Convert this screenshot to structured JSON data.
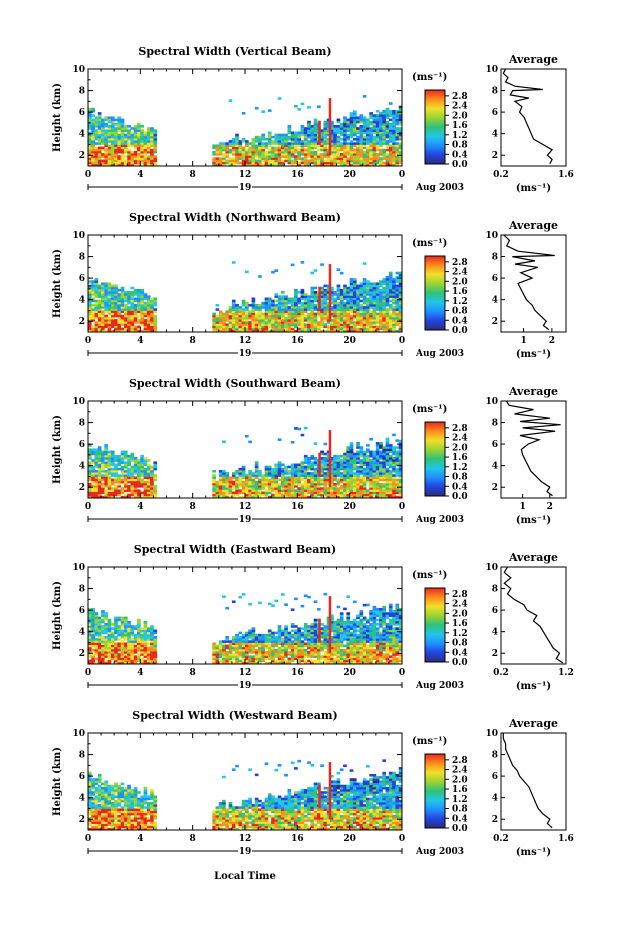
{
  "footer": {
    "xlabel": "Local Time"
  },
  "colorbar": {
    "unit": "(ms⁻¹)",
    "ticks": [
      "0.0",
      "0.4",
      "0.8",
      "1.2",
      "1.6",
      "2.0",
      "2.4",
      "2.8"
    ],
    "stops": [
      "#2c2c7a",
      "#2244dd",
      "#1e90ff",
      "#22c6e8",
      "#2ec27a",
      "#9ad432",
      "#f0e02a",
      "#ff8c1a",
      "#e8281e"
    ]
  },
  "chart_data": [
    {
      "type": "heatmap",
      "title": "Spectral Width (Vertical Beam)",
      "ylabel": "Height (km)",
      "xticks": [
        "0",
        "4",
        "8",
        "12",
        "16",
        "20",
        "0"
      ],
      "date_hour_label": "19",
      "date_label": "Aug 2003",
      "ylim": [
        1,
        10
      ],
      "yticks": [
        "2",
        "4",
        "6",
        "8",
        "10"
      ],
      "avg": {
        "title": "Average",
        "xlabel": "(ms⁻¹)",
        "xticks": [
          "0.2",
          "1.6"
        ],
        "xlim": [
          0.2,
          1.6
        ],
        "ylim": [
          1,
          10
        ],
        "yticks": [
          "2",
          "4",
          "6",
          "8",
          "10"
        ],
        "profile": [
          [
            1.25,
            1.2
          ],
          [
            1.3,
            1.6
          ],
          [
            1.2,
            2.0
          ],
          [
            1.3,
            2.5
          ],
          [
            1.1,
            3.0
          ],
          [
            0.9,
            3.5
          ],
          [
            0.85,
            4.0
          ],
          [
            0.8,
            4.5
          ],
          [
            0.75,
            5.0
          ],
          [
            0.7,
            5.5
          ],
          [
            0.6,
            6.0
          ],
          [
            0.65,
            6.5
          ],
          [
            0.5,
            7.0
          ],
          [
            0.8,
            7.3
          ],
          [
            0.4,
            7.6
          ],
          [
            0.45,
            8.0
          ],
          [
            1.1,
            8.1
          ],
          [
            0.5,
            8.4
          ],
          [
            0.3,
            8.8
          ],
          [
            0.35,
            9.2
          ],
          [
            0.25,
            9.6
          ],
          [
            0.3,
            10.0
          ]
        ]
      }
    },
    {
      "type": "heatmap",
      "title": "Spectral Width (Northward Beam)",
      "ylabel": "Height (km)",
      "xticks": [
        "0",
        "4",
        "8",
        "12",
        "16",
        "20",
        "0"
      ],
      "date_hour_label": "19",
      "date_label": "Aug 2003",
      "ylim": [
        1,
        10
      ],
      "yticks": [
        "2",
        "4",
        "6",
        "8",
        "10"
      ],
      "avg": {
        "title": "Average",
        "xlabel": "(ms⁻¹)",
        "xticks": [
          "1",
          "2"
        ],
        "xlim": [
          0.2,
          2.5
        ],
        "ylim": [
          1,
          10
        ],
        "yticks": [
          "2",
          "4",
          "6",
          "8",
          "10"
        ],
        "profile": [
          [
            1.9,
            1.2
          ],
          [
            1.7,
            1.6
          ],
          [
            1.8,
            2.0
          ],
          [
            1.6,
            2.5
          ],
          [
            1.4,
            3.0
          ],
          [
            1.3,
            3.5
          ],
          [
            1.1,
            4.0
          ],
          [
            1.0,
            4.5
          ],
          [
            0.9,
            5.0
          ],
          [
            0.8,
            5.5
          ],
          [
            1.3,
            6.0
          ],
          [
            0.9,
            6.5
          ],
          [
            1.5,
            7.0
          ],
          [
            0.7,
            7.3
          ],
          [
            1.4,
            7.6
          ],
          [
            0.6,
            8.0
          ],
          [
            2.1,
            8.1
          ],
          [
            0.8,
            8.5
          ],
          [
            0.4,
            9.0
          ],
          [
            0.5,
            9.5
          ],
          [
            0.3,
            10.0
          ]
        ]
      }
    },
    {
      "type": "heatmap",
      "title": "Spectral Width (Southward Beam)",
      "ylabel": "Height (km)",
      "xticks": [
        "0",
        "4",
        "8",
        "12",
        "16",
        "20",
        "0"
      ],
      "date_hour_label": "19",
      "date_label": "Aug 2003",
      "ylim": [
        1,
        10
      ],
      "yticks": [
        "2",
        "4",
        "6",
        "8",
        "10"
      ],
      "avg": {
        "title": "Average",
        "xlabel": "(ms⁻¹)",
        "xticks": [
          "1",
          "2"
        ],
        "xlim": [
          0.2,
          2.6
        ],
        "ylim": [
          1,
          10
        ],
        "yticks": [
          "2",
          "4",
          "6",
          "8",
          "10"
        ],
        "profile": [
          [
            2.1,
            1.2
          ],
          [
            1.9,
            1.6
          ],
          [
            2.0,
            2.0
          ],
          [
            1.7,
            2.5
          ],
          [
            1.5,
            3.0
          ],
          [
            1.3,
            3.5
          ],
          [
            1.2,
            4.0
          ],
          [
            1.1,
            4.5
          ],
          [
            1.0,
            5.0
          ],
          [
            0.95,
            5.5
          ],
          [
            1.2,
            6.0
          ],
          [
            1.6,
            6.4
          ],
          [
            0.9,
            6.8
          ],
          [
            2.2,
            7.2
          ],
          [
            1.0,
            7.5
          ],
          [
            2.4,
            7.8
          ],
          [
            0.9,
            8.1
          ],
          [
            2.0,
            8.4
          ],
          [
            0.7,
            8.8
          ],
          [
            1.4,
            9.2
          ],
          [
            0.5,
            9.6
          ],
          [
            0.4,
            10.0
          ]
        ]
      }
    },
    {
      "type": "heatmap",
      "title": "Spectral Width (Eastward Beam)",
      "ylabel": "Height (km)",
      "xticks": [
        "0",
        "4",
        "8",
        "12",
        "16",
        "20",
        "0"
      ],
      "date_hour_label": "19",
      "date_label": "Aug 2003",
      "ylim": [
        1,
        10
      ],
      "yticks": [
        "2",
        "4",
        "6",
        "8",
        "10"
      ],
      "avg": {
        "title": "Average",
        "xlabel": "(ms⁻¹)",
        "xticks": [
          "0.2",
          "1.2"
        ],
        "xlim": [
          0.2,
          1.2
        ],
        "ylim": [
          1,
          10
        ],
        "yticks": [
          "2",
          "4",
          "6",
          "8",
          "10"
        ],
        "profile": [
          [
            1.15,
            1.1
          ],
          [
            1.05,
            1.5
          ],
          [
            1.1,
            2.0
          ],
          [
            1.0,
            2.5
          ],
          [
            0.95,
            3.0
          ],
          [
            0.9,
            3.5
          ],
          [
            0.85,
            4.0
          ],
          [
            0.8,
            4.5
          ],
          [
            0.7,
            5.0
          ],
          [
            0.75,
            5.5
          ],
          [
            0.6,
            6.0
          ],
          [
            0.55,
            6.5
          ],
          [
            0.4,
            7.0
          ],
          [
            0.3,
            7.5
          ],
          [
            0.35,
            8.0
          ],
          [
            0.25,
            8.5
          ],
          [
            0.35,
            9.0
          ],
          [
            0.25,
            9.5
          ],
          [
            0.3,
            10.0
          ]
        ]
      }
    },
    {
      "type": "heatmap",
      "title": "Spectral Width (Westward Beam)",
      "ylabel": "Height (km)",
      "xticks": [
        "0",
        "4",
        "8",
        "12",
        "16",
        "20",
        "0"
      ],
      "date_hour_label": "19",
      "date_label": "Aug 2003",
      "ylim": [
        1,
        10
      ],
      "yticks": [
        "2",
        "4",
        "6",
        "8",
        "10"
      ],
      "avg": {
        "title": "Average",
        "xlabel": "(ms⁻¹)",
        "xticks": [
          "0.2",
          "1.6"
        ],
        "xlim": [
          0.2,
          1.6
        ],
        "ylim": [
          1,
          10
        ],
        "yticks": [
          "2",
          "4",
          "6",
          "8",
          "10"
        ],
        "profile": [
          [
            1.3,
            1.2
          ],
          [
            1.2,
            1.6
          ],
          [
            1.25,
            2.0
          ],
          [
            1.1,
            2.5
          ],
          [
            1.0,
            3.0
          ],
          [
            0.95,
            3.5
          ],
          [
            0.9,
            4.0
          ],
          [
            0.85,
            4.5
          ],
          [
            0.8,
            5.0
          ],
          [
            0.7,
            5.5
          ],
          [
            0.6,
            6.0
          ],
          [
            0.55,
            6.5
          ],
          [
            0.45,
            7.0
          ],
          [
            0.4,
            7.5
          ],
          [
            0.35,
            8.0
          ],
          [
            0.3,
            8.5
          ],
          [
            0.3,
            9.0
          ],
          [
            0.25,
            9.5
          ],
          [
            0.25,
            10.0
          ]
        ]
      }
    }
  ]
}
